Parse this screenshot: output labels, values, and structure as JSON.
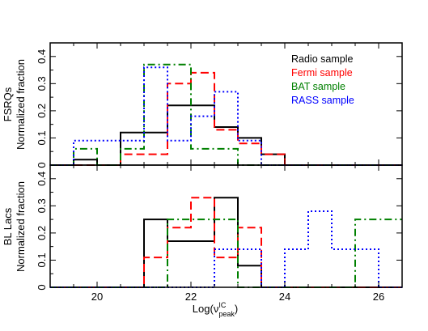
{
  "chart_data": {
    "type": "histogram-step",
    "xlabel": "Log(ν",
    "xlabel_sup": "IC",
    "xlabel_sub": "peak",
    "xlabel_close": ")",
    "xlim": [
      19,
      26.5
    ],
    "x_ticks": [
      "20",
      "22",
      "24",
      "26"
    ],
    "x_tick_values": [
      20,
      22,
      24,
      26
    ],
    "bin_edges": [
      19.5,
      20.0,
      20.5,
      21.0,
      21.5,
      22.0,
      22.5,
      23.0,
      23.5,
      24.0,
      24.5,
      25.0,
      25.5,
      26.0,
      26.5
    ],
    "legend": {
      "placement": "top-right",
      "entries": [
        {
          "label": "Radio sample",
          "color": "#000000"
        },
        {
          "label": "Fermi sample",
          "color": "#ff0000"
        },
        {
          "label": "BAT sample",
          "color": "#008000"
        },
        {
          "label": "RASS sample",
          "color": "#0000ff"
        }
      ]
    },
    "panels": [
      {
        "id": "fsrq",
        "ylabel_line1": "FSRQs",
        "ylabel_line2": "Normalized fraction",
        "ylim": [
          0,
          0.45
        ],
        "y_ticks": [
          "0",
          "0.1",
          "0.2",
          "0.3",
          "0.4"
        ],
        "y_tick_values": [
          0,
          0.1,
          0.2,
          0.3,
          0.4
        ],
        "series": [
          {
            "name": "Radio sample",
            "color": "#000000",
            "style": "solid",
            "values": [
              0.02,
              0,
              0.12,
              0.12,
              0.22,
              0.22,
              0.14,
              0.1,
              0.04,
              0,
              0,
              0,
              0,
              0
            ]
          },
          {
            "name": "Fermi sample",
            "color": "#ff0000",
            "style": "dash",
            "values": [
              0,
              0,
              0.04,
              0.04,
              0.3,
              0.34,
              0.13,
              0.08,
              0.04,
              0,
              0,
              0,
              0,
              0
            ]
          },
          {
            "name": "BAT sample",
            "color": "#008000",
            "style": "dashdot",
            "values": [
              0.06,
              0,
              0.06,
              0.37,
              0.37,
              0.06,
              0.06,
              0,
              0,
              0,
              0,
              0,
              0,
              0
            ]
          },
          {
            "name": "RASS sample",
            "color": "#0000ff",
            "style": "dot",
            "values": [
              0.09,
              0.09,
              0.09,
              0.36,
              0.09,
              0.18,
              0.27,
              0.09,
              0,
              0,
              0,
              0,
              0,
              0
            ]
          }
        ]
      },
      {
        "id": "bllac",
        "ylabel_line1": "BL Lacs",
        "ylabel_line2": "Normalized fraction",
        "ylim": [
          0,
          0.45
        ],
        "y_ticks": [
          "0",
          "0.1",
          "0.2",
          "0.3",
          "0.4"
        ],
        "y_tick_values": [
          0,
          0.1,
          0.2,
          0.3,
          0.4
        ],
        "series": [
          {
            "name": "Radio sample",
            "color": "#000000",
            "style": "solid",
            "values": [
              0,
              0,
              0,
              0.25,
              0.17,
              0.17,
              0.33,
              0.08,
              0,
              0,
              0,
              0,
              0,
              0
            ]
          },
          {
            "name": "Fermi sample",
            "color": "#ff0000",
            "style": "dash",
            "values": [
              0,
              0,
              0,
              0.11,
              0.22,
              0.33,
              0.11,
              0.22,
              0,
              0,
              0,
              0,
              0,
              0
            ]
          },
          {
            "name": "BAT sample",
            "color": "#008000",
            "style": "dashdot",
            "values": [
              0,
              0,
              0,
              0,
              0.25,
              0.25,
              0.25,
              0,
              0,
              0,
              0,
              0,
              0.25,
              0.25
            ]
          },
          {
            "name": "RASS sample",
            "color": "#0000ff",
            "style": "dot",
            "values": [
              0,
              0,
              0,
              0,
              0,
              0,
              0.14,
              0.14,
              0,
              0.14,
              0.28,
              0.14,
              0.14,
              0
            ]
          }
        ]
      }
    ]
  }
}
